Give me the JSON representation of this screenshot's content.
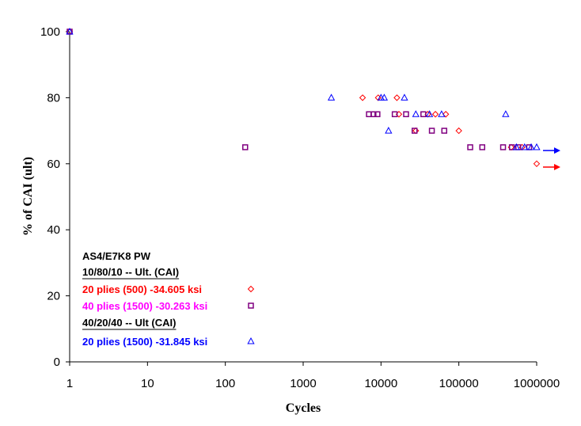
{
  "chart_data": {
    "type": "scatter",
    "title": "",
    "xlabel": "Cycles",
    "ylabel": "% of CAI (ult)",
    "x_scale": "log",
    "xlim": [
      1,
      1000000
    ],
    "ylim": [
      0,
      100
    ],
    "x_ticks": [
      "1",
      "10",
      "100",
      "1000",
      "10000",
      "100000",
      "1000000"
    ],
    "y_ticks": [
      "0",
      "20",
      "40",
      "60",
      "80",
      "100"
    ],
    "grid": false,
    "legend_position": "bottom-left",
    "legend_title": "AS4/E7K8 PW",
    "groups": [
      {
        "heading": "10/80/10 -- Ult. (CAI)",
        "series_indices": [
          0,
          1
        ]
      },
      {
        "heading": "40/20/40 -- Ult (CAI)",
        "series_indices": [
          2
        ]
      }
    ],
    "series": [
      {
        "name": "20 plies (500) -34.605 ksi",
        "color": "#ff0000",
        "marker": "diamond",
        "points": [
          [
            1,
            100
          ],
          [
            5800,
            80
          ],
          [
            9200,
            80
          ],
          [
            16000,
            80
          ],
          [
            17000,
            75
          ],
          [
            28000,
            70
          ],
          [
            40000,
            75
          ],
          [
            50000,
            75
          ],
          [
            68000,
            75
          ],
          [
            100000,
            70
          ],
          [
            470000,
            65
          ],
          [
            650000,
            65
          ],
          [
            1000000,
            60
          ]
        ],
        "runout_arrow": {
          "y": 59
        }
      },
      {
        "name": "40 plies (1500) -30.263 ksi",
        "color": "#800080",
        "marker": "square",
        "points": [
          [
            1,
            100
          ],
          [
            180,
            65
          ],
          [
            7000,
            75
          ],
          [
            8000,
            75
          ],
          [
            9000,
            75
          ],
          [
            15000,
            75
          ],
          [
            21000,
            75
          ],
          [
            27000,
            70
          ],
          [
            35000,
            75
          ],
          [
            45000,
            70
          ],
          [
            65000,
            70
          ],
          [
            140000,
            65
          ],
          [
            200000,
            65
          ],
          [
            370000,
            65
          ],
          [
            480000,
            65
          ],
          [
            580000,
            65
          ],
          [
            800000,
            65
          ]
        ]
      },
      {
        "name": "20 plies (1500) -31.845 ksi",
        "color": "#0000ff",
        "marker": "triangle",
        "points": [
          [
            1,
            100
          ],
          [
            2300,
            80
          ],
          [
            10000,
            80
          ],
          [
            11000,
            80
          ],
          [
            20000,
            80
          ],
          [
            12500,
            70
          ],
          [
            28000,
            75
          ],
          [
            42000,
            75
          ],
          [
            60000,
            75
          ],
          [
            400000,
            75
          ],
          [
            550000,
            65
          ],
          [
            700000,
            65
          ],
          [
            850000,
            65
          ],
          [
            1000000,
            65
          ]
        ],
        "runout_arrow": {
          "y": 64
        }
      }
    ]
  }
}
